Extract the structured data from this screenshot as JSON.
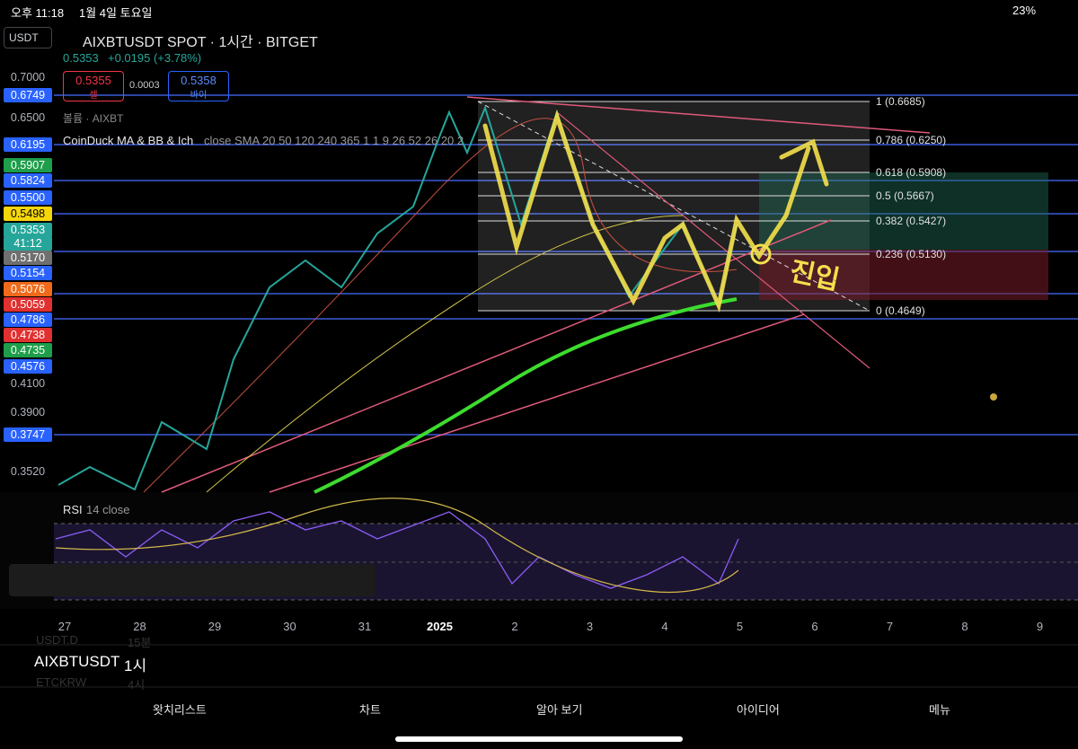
{
  "status_bar": {
    "time": "오후 11:18",
    "date": "1월 4일 토요일",
    "battery": "23%"
  },
  "header": {
    "quote_currency": "USDT",
    "symbol_title": "AIXBTUSDT SPOT · 1시간 · BITGET",
    "last_price": "0.5353",
    "change": "+0.0195 (+3.78%)",
    "sell": {
      "price": "0.5355",
      "label": "셀"
    },
    "spread": "0.0003",
    "buy": {
      "price": "0.5358",
      "label": "바이"
    },
    "volume": "볼륨 · AIXBT",
    "indicator_name": "CoinDuck MA & BB & Ich",
    "indicator_params": "close SMA 20 50 120 240 365 1 1 9 26 52 26 20 2"
  },
  "price_axis": [
    "0.7000",
    "0.6749",
    "0.6500",
    "0.6195",
    "0.5907",
    "0.5824",
    "0.5500",
    "0.5498",
    "0.5353",
    "0.5170",
    "0.5154",
    "0.5076",
    "0.5059",
    "0.4786",
    "0.4738",
    "0.4735",
    "0.4576",
    "0.4100",
    "0.3900",
    "0.3747",
    "0.3520"
  ],
  "countdown": "41:12",
  "fib_levels": [
    "1 (0.6685)",
    "0.786 (0.6250)",
    "0.618 (0.5908)",
    "0.5 (0.5667)",
    "0.382 (0.5427)",
    "0.236 (0.5130)",
    "0 (0.4649)"
  ],
  "annotation": "진입",
  "rsi": {
    "name": "RSI",
    "params": "14 close"
  },
  "time_axis": [
    "27",
    "28",
    "29",
    "30",
    "31",
    "2025",
    "2",
    "3",
    "4",
    "5",
    "6",
    "7",
    "8",
    "9"
  ],
  "toolbar": {
    "symbol": "AIXBTUSDT",
    "interval": "1시",
    "ghost_symbol": "USDT.D",
    "ghost_interval": "15분",
    "ghost_symbol2": "ETCKRW",
    "ghost_interval2": "4시"
  },
  "tabs": [
    "왓치리스트",
    "차트",
    "알아 보기",
    "아이디어",
    "메뉴"
  ]
}
